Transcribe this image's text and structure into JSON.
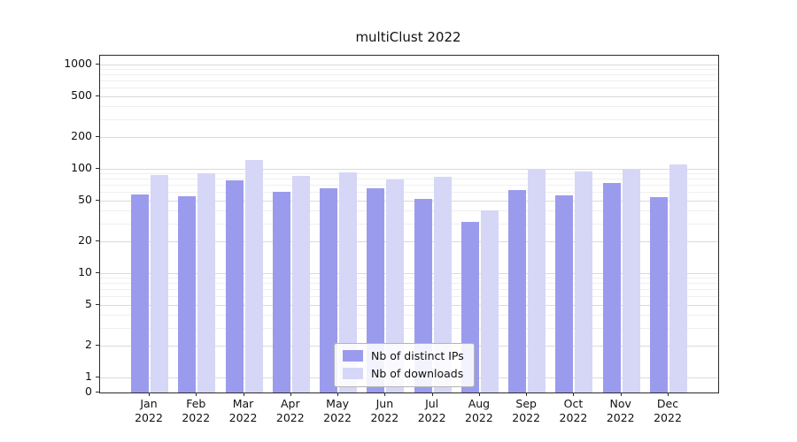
{
  "chart_data": {
    "type": "bar",
    "title": "multiClust 2022",
    "yscale": "symlog",
    "ylim": [
      0,
      1300
    ],
    "grid": "both",
    "legend_position": "lower center",
    "yticks": [
      1000,
      500,
      200,
      100,
      50,
      20,
      10,
      5,
      2,
      1,
      0
    ],
    "categories": [
      "Jan",
      "Feb",
      "Mar",
      "Apr",
      "May",
      "Jun",
      "Jul",
      "Aug",
      "Sep",
      "Oct",
      "Nov",
      "Dec"
    ],
    "category_year": "2022",
    "series": [
      {
        "name": "Nb of distinct IPs",
        "color": "#9b9bee",
        "values": [
          57,
          55,
          78,
          60,
          65,
          65,
          52,
          31,
          62,
          56,
          73,
          54
        ]
      },
      {
        "name": "Nb of downloads",
        "color": "#d6d6f7",
        "values": [
          88,
          91,
          122,
          85,
          93,
          79,
          84,
          40,
          100,
          95,
          100,
          110
        ]
      }
    ]
  }
}
